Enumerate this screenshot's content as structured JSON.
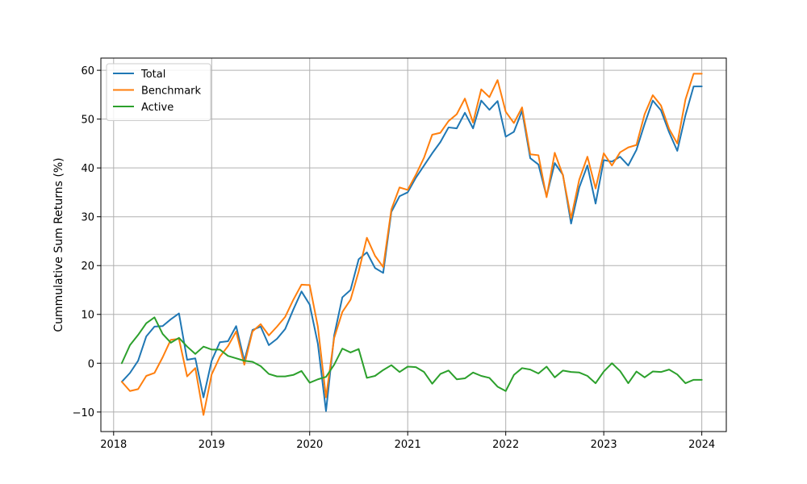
{
  "chart_data": {
    "type": "line",
    "title": "",
    "xlabel": "",
    "ylabel": "Cummulative Sum Returns (%)",
    "xlim": [
      2017.87,
      2024.25
    ],
    "ylim": [
      -14,
      62.5
    ],
    "x_ticks": [
      2018,
      2019,
      2020,
      2021,
      2022,
      2023,
      2024
    ],
    "x_tick_labels": [
      "2018",
      "2019",
      "2020",
      "2021",
      "2022",
      "2023",
      "2024"
    ],
    "y_ticks": [
      -10,
      0,
      10,
      20,
      30,
      40,
      50,
      60
    ],
    "y_tick_labels": [
      "−10",
      "0",
      "10",
      "20",
      "30",
      "40",
      "50",
      "60"
    ],
    "grid": true,
    "legend_position": "top-left",
    "x_start": "2018-01",
    "x_frequency": "monthly",
    "series": [
      {
        "name": "Total",
        "color": "#1f77b4",
        "values": [
          -3.8,
          -2.0,
          0.5,
          5.5,
          7.5,
          7.6,
          9.0,
          10.2,
          0.7,
          1.0,
          -7.0,
          0.5,
          4.3,
          4.5,
          7.6,
          0.5,
          6.8,
          7.5,
          3.7,
          5.0,
          7.0,
          11.0,
          14.7,
          12.0,
          4.0,
          -9.8,
          5.7,
          13.5,
          15.0,
          21.3,
          22.7,
          19.5,
          18.5,
          31.0,
          34.2,
          35.0,
          38.0,
          40.5,
          43.0,
          45.3,
          48.3,
          48.1,
          51.3,
          48.1,
          53.8,
          51.9,
          53.7,
          46.4,
          47.4,
          51.7,
          42.0,
          40.7,
          34.2,
          41.0,
          38.6,
          28.6,
          36.0,
          40.5,
          32.7,
          41.6,
          41.3,
          42.3,
          40.5,
          43.7,
          49.0,
          53.8,
          51.8,
          47.3,
          43.5,
          50.8,
          56.7,
          56.7
        ]
      },
      {
        "name": "Benchmark",
        "color": "#ff7f0e",
        "values": [
          -3.8,
          -5.7,
          -5.3,
          -2.6,
          -2.0,
          1.2,
          4.8,
          5.0,
          -2.7,
          -1.0,
          -10.6,
          -2.3,
          1.3,
          3.5,
          6.5,
          -0.3,
          6.5,
          8.0,
          5.7,
          7.5,
          9.5,
          13.0,
          16.1,
          16.0,
          7.5,
          -7.0,
          5.2,
          10.5,
          13.0,
          18.8,
          25.7,
          22.0,
          19.7,
          31.5,
          36.0,
          35.5,
          38.6,
          42.1,
          46.8,
          47.2,
          49.6,
          51.0,
          54.2,
          49.3,
          56.1,
          54.5,
          58.0,
          51.5,
          49.2,
          52.4,
          42.8,
          42.6,
          34.0,
          43.1,
          38.5,
          29.7,
          37.6,
          42.3,
          35.8,
          43.0,
          40.5,
          43.2,
          44.2,
          44.7,
          51.0,
          54.9,
          52.8,
          48.0,
          45.0,
          54.0,
          59.3,
          59.3
        ]
      },
      {
        "name": "Active",
        "color": "#2ca02c",
        "values": [
          0.0,
          3.7,
          5.8,
          8.2,
          9.4,
          6.0,
          4.2,
          5.2,
          3.4,
          1.9,
          3.4,
          2.8,
          2.8,
          1.5,
          1.0,
          0.5,
          0.3,
          -0.6,
          -2.2,
          -2.7,
          -2.7,
          -2.4,
          -1.6,
          -4.0,
          -3.3,
          -2.8,
          -0.3,
          3.0,
          2.2,
          2.9,
          -3.0,
          -2.6,
          -1.4,
          -0.4,
          -1.8,
          -0.7,
          -0.8,
          -1.8,
          -4.2,
          -2.2,
          -1.5,
          -3.3,
          -3.1,
          -1.9,
          -2.6,
          -3.0,
          -4.8,
          -5.7,
          -2.4,
          -1.0,
          -1.3,
          -2.1,
          -0.7,
          -2.9,
          -1.5,
          -1.8,
          -1.9,
          -2.6,
          -4.1,
          -1.7,
          0.0,
          -1.6,
          -4.1,
          -1.7,
          -2.9,
          -1.7,
          -1.8,
          -1.3,
          -2.3,
          -4.1,
          -3.4,
          -3.4
        ]
      }
    ]
  }
}
